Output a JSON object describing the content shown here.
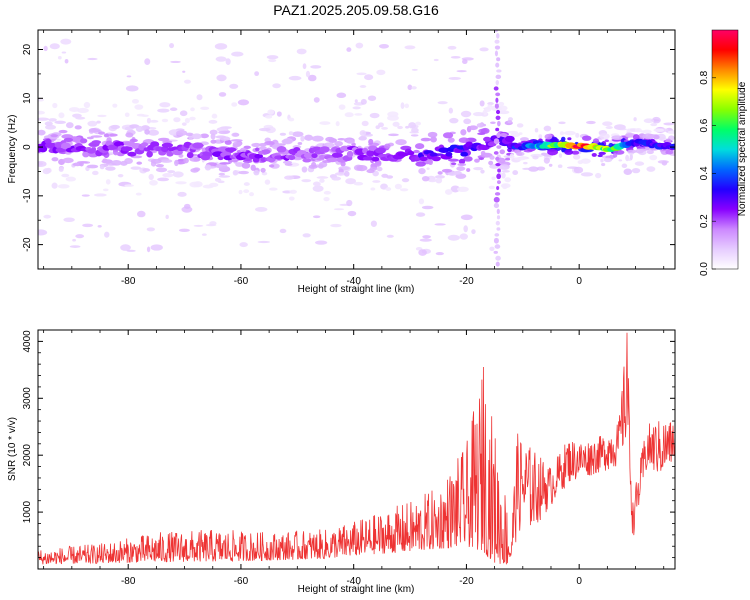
{
  "figure": {
    "title": "PAZ1.2025.205.09.58.G16"
  },
  "chart_data": [
    {
      "type": "heatmap",
      "title": "PAZ1.2025.205.09.58.G16",
      "xlabel": "Height of straight line (km)",
      "ylabel": "Frequency (Hz)",
      "xlim": [
        -96,
        17
      ],
      "ylim": [
        -25,
        24
      ],
      "x_ticks": [
        -80,
        -60,
        -40,
        -20,
        0
      ],
      "y_ticks": [
        -20,
        -10,
        0,
        10,
        20
      ],
      "colorbar": {
        "label": "Normalized spectral amplitude",
        "range": [
          0,
          1
        ],
        "ticks": [
          0.0,
          0.2,
          0.4,
          0.6,
          0.8
        ],
        "tick_labels": [
          "0.0",
          "0.2",
          "0.4",
          "0.6",
          "0.8"
        ],
        "colormap": [
          "#ffffff",
          "#e6ccff",
          "#cc88ff",
          "#8800ff",
          "#2200ff",
          "#0066ff",
          "#00dddd",
          "#00ff66",
          "#88ff00",
          "#ffff00",
          "#ff8800",
          "#ff0000",
          "#ff0066"
        ]
      },
      "ridge": [
        {
          "x": -96,
          "f": 0.5,
          "amp": 0.25
        },
        {
          "x": -85,
          "f": 0.0,
          "amp": 0.25
        },
        {
          "x": -75,
          "f": -0.5,
          "amp": 0.22
        },
        {
          "x": -65,
          "f": -1.0,
          "amp": 0.25
        },
        {
          "x": -55,
          "f": -1.5,
          "amp": 0.25
        },
        {
          "x": -45,
          "f": -1.5,
          "amp": 0.22
        },
        {
          "x": -35,
          "f": -1.2,
          "amp": 0.25
        },
        {
          "x": -28,
          "f": -1.5,
          "amp": 0.3
        },
        {
          "x": -20,
          "f": -0.5,
          "amp": 0.35
        },
        {
          "x": -15,
          "f": 1.0,
          "amp": 0.28
        },
        {
          "x": -10,
          "f": 0.0,
          "amp": 0.4
        },
        {
          "x": -5,
          "f": 0.5,
          "amp": 0.7
        },
        {
          "x": 0,
          "f": 0.2,
          "amp": 0.95
        },
        {
          "x": 5,
          "f": -0.5,
          "amp": 0.75
        },
        {
          "x": 10,
          "f": 1.0,
          "amp": 0.4
        },
        {
          "x": 17,
          "f": 0.0,
          "amp": 0.35
        }
      ]
    },
    {
      "type": "line",
      "xlabel": "Height of straight line (km)",
      "ylabel": "SNR (10 * v/v)",
      "xlim": [
        -96,
        17
      ],
      "ylim": [
        0,
        4200
      ],
      "x_ticks": [
        -80,
        -60,
        -40,
        -20,
        0
      ],
      "y_ticks": [
        1000,
        2000,
        3000,
        4000
      ],
      "color": "#ee3333",
      "envelope": [
        {
          "x": -96,
          "low": 80,
          "high": 350
        },
        {
          "x": -85,
          "low": 100,
          "high": 450
        },
        {
          "x": -75,
          "low": 120,
          "high": 650
        },
        {
          "x": -65,
          "low": 130,
          "high": 700
        },
        {
          "x": -55,
          "low": 150,
          "high": 650
        },
        {
          "x": -45,
          "low": 180,
          "high": 700
        },
        {
          "x": -38,
          "low": 250,
          "high": 900
        },
        {
          "x": -30,
          "low": 300,
          "high": 1200
        },
        {
          "x": -25,
          "low": 350,
          "high": 1450
        },
        {
          "x": -20,
          "low": 400,
          "high": 2200
        },
        {
          "x": -17,
          "low": 300,
          "high": 3550
        },
        {
          "x": -15,
          "low": 100,
          "high": 2500
        },
        {
          "x": -12,
          "low": 50,
          "high": 800
        },
        {
          "x": -11,
          "low": 600,
          "high": 2400
        },
        {
          "x": -8,
          "low": 700,
          "high": 2100
        },
        {
          "x": -5,
          "low": 1100,
          "high": 1800
        },
        {
          "x": -2,
          "low": 1500,
          "high": 2300
        },
        {
          "x": 1,
          "low": 1600,
          "high": 2250
        },
        {
          "x": 4,
          "low": 1700,
          "high": 2350
        },
        {
          "x": 7,
          "low": 1800,
          "high": 2600
        },
        {
          "x": 8.5,
          "low": 2200,
          "high": 4150
        },
        {
          "x": 9.5,
          "low": 500,
          "high": 1200
        },
        {
          "x": 12,
          "low": 1700,
          "high": 2550
        },
        {
          "x": 15,
          "low": 1600,
          "high": 2650
        },
        {
          "x": 17,
          "low": 1900,
          "high": 2600
        }
      ]
    }
  ]
}
